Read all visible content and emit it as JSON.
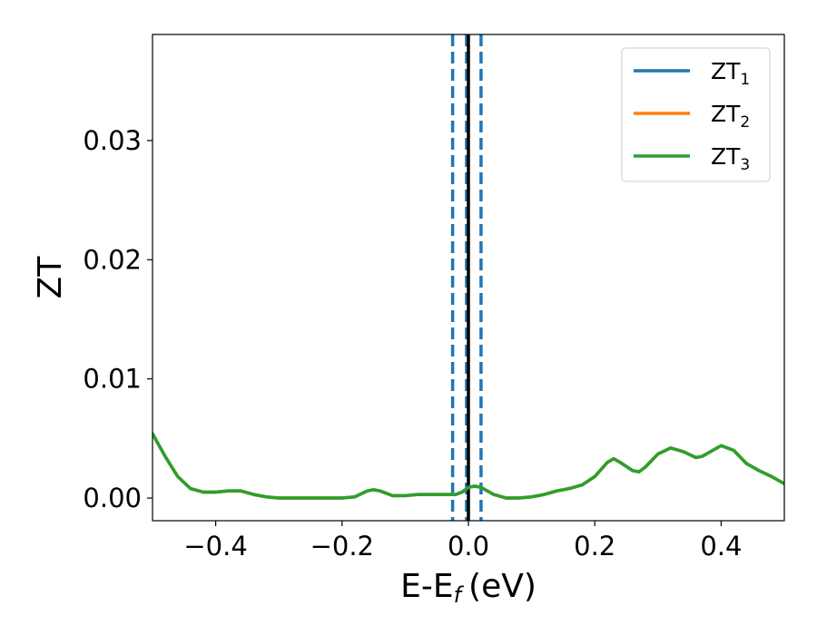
{
  "chart_data": {
    "type": "line",
    "xlabel_main": "E-E",
    "xlabel_sub": "f",
    "xlabel_unit": "(eV)",
    "ylabel": "ZT",
    "xlim": [
      -0.5,
      0.5
    ],
    "ylim": [
      -0.0019,
      0.0389
    ],
    "grid": false,
    "legend_position": "top-right",
    "x_ticks": [
      {
        "value": -0.4,
        "label": "−0.4"
      },
      {
        "value": -0.2,
        "label": "−0.2"
      },
      {
        "value": 0.0,
        "label": "0.0"
      },
      {
        "value": 0.2,
        "label": "0.2"
      },
      {
        "value": 0.4,
        "label": "0.4"
      }
    ],
    "y_ticks": [
      {
        "value": 0.0,
        "label": "0.00"
      },
      {
        "value": 0.01,
        "label": "0.01"
      },
      {
        "value": 0.02,
        "label": "0.02"
      },
      {
        "value": 0.03,
        "label": "0.03"
      }
    ],
    "vertical_lines": [
      {
        "x": -0.025,
        "style": "dashed",
        "color": "#1f77b4"
      },
      {
        "x": -0.003,
        "style": "dashed",
        "color": "#1f77b4"
      },
      {
        "x": 0.0,
        "style": "solid",
        "color": "#000000"
      },
      {
        "x": 0.02,
        "style": "dashed",
        "color": "#1f77b4"
      }
    ],
    "series": [
      {
        "legend_main": "ZT",
        "legend_sub": "1",
        "color": "#1f77b4",
        "x": [
          -0.5,
          -0.48,
          -0.46,
          -0.44,
          -0.42,
          -0.4,
          -0.38,
          -0.36,
          -0.34,
          -0.32,
          -0.3,
          -0.28,
          -0.26,
          -0.24,
          -0.22,
          -0.2,
          -0.18,
          -0.16,
          -0.15,
          -0.14,
          -0.12,
          -0.1,
          -0.08,
          -0.06,
          -0.04,
          -0.02,
          -0.01,
          0.0,
          0.01,
          0.02,
          0.04,
          0.06,
          0.08,
          0.1,
          0.12,
          0.14,
          0.16,
          0.18,
          0.2,
          0.22,
          0.23,
          0.24,
          0.26,
          0.27,
          0.28,
          0.3,
          0.32,
          0.34,
          0.36,
          0.37,
          0.38,
          0.4,
          0.42,
          0.44,
          0.46,
          0.48,
          0.5
        ],
        "y": [
          0.0054,
          0.0035,
          0.0018,
          0.0008,
          0.0005,
          0.0005,
          0.0006,
          0.0006,
          0.0003,
          0.0001,
          0.0,
          0.0,
          0.0,
          0.0,
          0.0,
          0.0,
          0.0001,
          0.0006,
          0.0007,
          0.0006,
          0.0002,
          0.0002,
          0.0003,
          0.0003,
          0.0003,
          0.0003,
          0.0005,
          0.0009,
          0.001,
          0.0009,
          0.0003,
          0.0,
          0.0,
          0.0001,
          0.0003,
          0.0006,
          0.0008,
          0.0011,
          0.0018,
          0.003,
          0.0033,
          0.003,
          0.0023,
          0.0022,
          0.0026,
          0.0037,
          0.0042,
          0.0039,
          0.0034,
          0.0035,
          0.0038,
          0.0044,
          0.004,
          0.0029,
          0.0023,
          0.0018,
          0.0012
        ]
      },
      {
        "legend_main": "ZT",
        "legend_sub": "2",
        "color": "#ff7f0e",
        "x": [
          -0.5,
          -0.48,
          -0.46,
          -0.44,
          -0.42,
          -0.4,
          -0.38,
          -0.36,
          -0.34,
          -0.32,
          -0.3,
          -0.28,
          -0.26,
          -0.24,
          -0.22,
          -0.2,
          -0.18,
          -0.16,
          -0.15,
          -0.14,
          -0.12,
          -0.1,
          -0.08,
          -0.06,
          -0.04,
          -0.02,
          -0.01,
          0.0,
          0.01,
          0.02,
          0.04,
          0.06,
          0.08,
          0.1,
          0.12,
          0.14,
          0.16,
          0.18,
          0.2,
          0.22,
          0.23,
          0.24,
          0.26,
          0.27,
          0.28,
          0.3,
          0.32,
          0.34,
          0.36,
          0.37,
          0.38,
          0.4,
          0.42,
          0.44,
          0.46,
          0.48,
          0.5
        ],
        "y": [
          0.0054,
          0.0035,
          0.0018,
          0.0008,
          0.0005,
          0.0005,
          0.0006,
          0.0006,
          0.0003,
          0.0001,
          0.0,
          0.0,
          0.0,
          0.0,
          0.0,
          0.0,
          0.0001,
          0.0006,
          0.0007,
          0.0006,
          0.0002,
          0.0002,
          0.0003,
          0.0003,
          0.0003,
          0.0003,
          0.0005,
          0.0009,
          0.001,
          0.0009,
          0.0003,
          0.0,
          0.0,
          0.0001,
          0.0003,
          0.0006,
          0.0008,
          0.0011,
          0.0018,
          0.003,
          0.0033,
          0.003,
          0.0023,
          0.0022,
          0.0026,
          0.0037,
          0.0042,
          0.0039,
          0.0034,
          0.0035,
          0.0038,
          0.0044,
          0.004,
          0.0029,
          0.0023,
          0.0018,
          0.0012
        ]
      },
      {
        "legend_main": "ZT",
        "legend_sub": "3",
        "color": "#2ca02c",
        "x": [
          -0.5,
          -0.48,
          -0.46,
          -0.44,
          -0.42,
          -0.4,
          -0.38,
          -0.36,
          -0.34,
          -0.32,
          -0.3,
          -0.28,
          -0.26,
          -0.24,
          -0.22,
          -0.2,
          -0.18,
          -0.16,
          -0.15,
          -0.14,
          -0.12,
          -0.1,
          -0.08,
          -0.06,
          -0.04,
          -0.02,
          -0.01,
          0.0,
          0.01,
          0.02,
          0.04,
          0.06,
          0.08,
          0.1,
          0.12,
          0.14,
          0.16,
          0.18,
          0.2,
          0.22,
          0.23,
          0.24,
          0.26,
          0.27,
          0.28,
          0.3,
          0.32,
          0.34,
          0.36,
          0.37,
          0.38,
          0.4,
          0.42,
          0.44,
          0.46,
          0.48,
          0.5
        ],
        "y": [
          0.0054,
          0.0035,
          0.0018,
          0.0008,
          0.0005,
          0.0005,
          0.0006,
          0.0006,
          0.0003,
          0.0001,
          0.0,
          0.0,
          0.0,
          0.0,
          0.0,
          0.0,
          0.0001,
          0.0006,
          0.0007,
          0.0006,
          0.0002,
          0.0002,
          0.0003,
          0.0003,
          0.0003,
          0.0003,
          0.0005,
          0.0009,
          0.001,
          0.0009,
          0.0003,
          0.0,
          0.0,
          0.0001,
          0.0003,
          0.0006,
          0.0008,
          0.0011,
          0.0018,
          0.003,
          0.0033,
          0.003,
          0.0023,
          0.0022,
          0.0026,
          0.0037,
          0.0042,
          0.0039,
          0.0034,
          0.0035,
          0.0038,
          0.0044,
          0.004,
          0.0029,
          0.0023,
          0.0018,
          0.0012
        ]
      }
    ]
  }
}
